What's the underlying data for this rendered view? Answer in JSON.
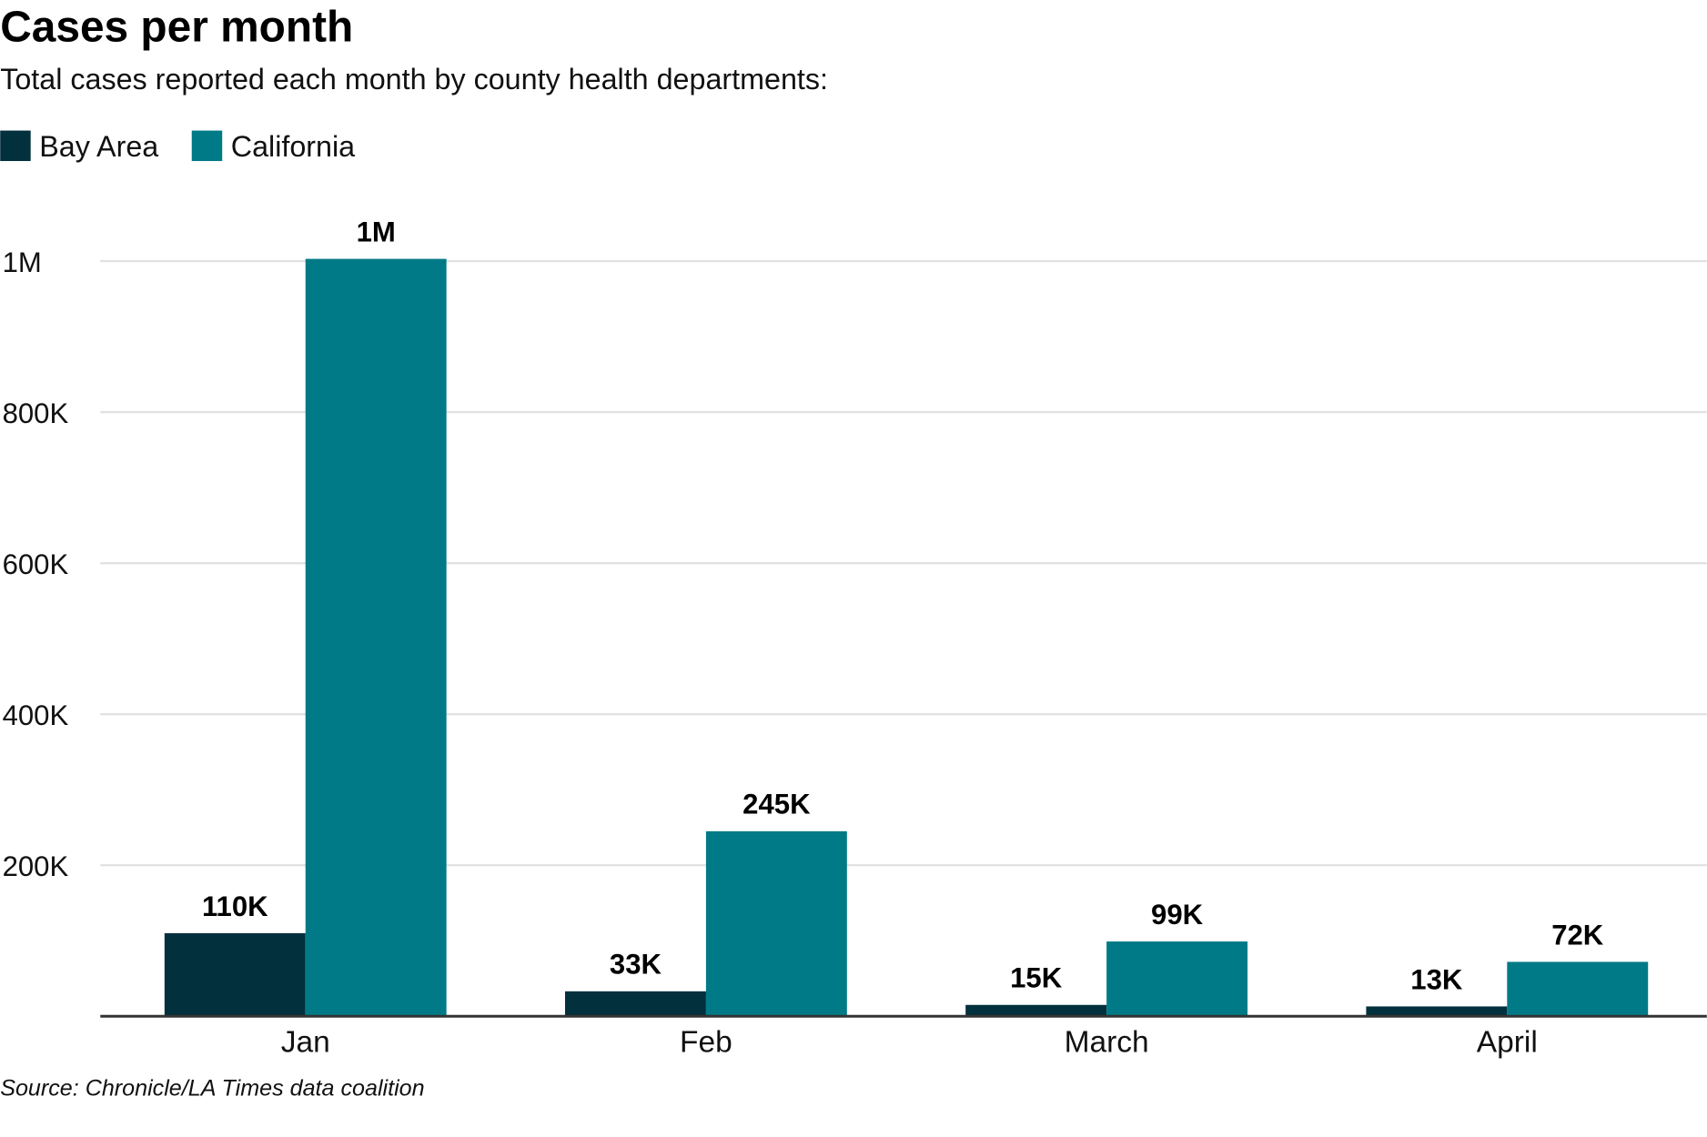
{
  "chart_data": {
    "type": "bar",
    "title": "Cases per month",
    "subtitle": "Total cases reported each month by county health departments:",
    "categories": [
      "Jan",
      "Feb",
      "March",
      "April"
    ],
    "series": [
      {
        "name": "Bay Area",
        "color": "#03303d",
        "values": [
          110000,
          33000,
          15000,
          13000
        ],
        "labels": [
          "110K",
          "33K",
          "15K",
          "13K"
        ]
      },
      {
        "name": "California",
        "color": "#007a87",
        "values": [
          1003000,
          245000,
          99000,
          72000
        ],
        "labels": [
          "1M",
          "245K",
          "99K",
          "72K"
        ]
      }
    ],
    "yticks": [
      200000,
      400000,
      600000,
      800000,
      1000000
    ],
    "ytick_labels": [
      "200K",
      "400K",
      "600K",
      "800K",
      "1M"
    ],
    "ylim": [
      0,
      1000000
    ],
    "grid": true,
    "legend": "top-left",
    "xlabel": "",
    "ylabel": "",
    "source": "Source: Chronicle/LA Times data coalition"
  }
}
